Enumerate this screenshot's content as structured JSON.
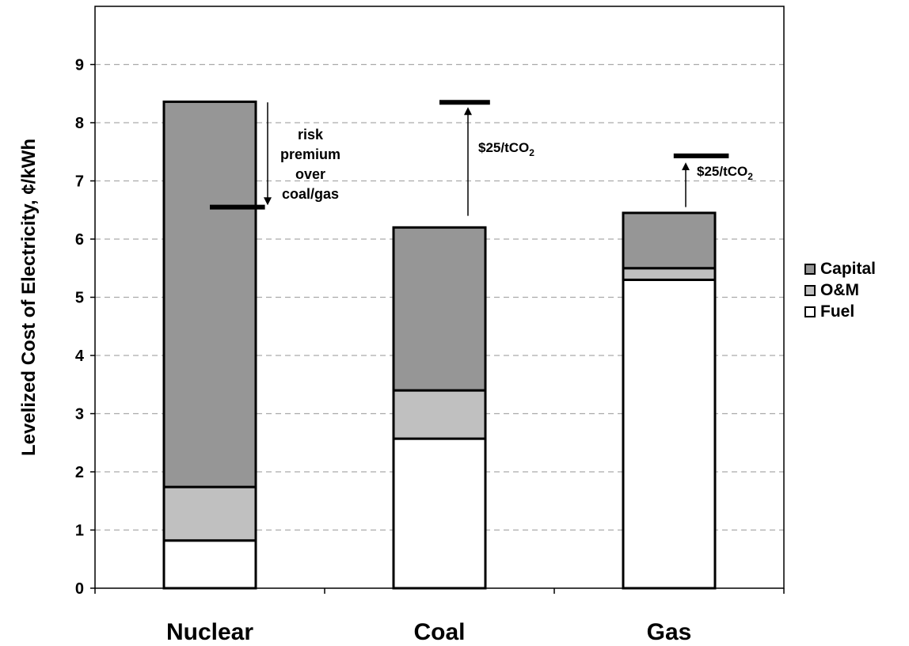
{
  "chart_data": {
    "type": "bar",
    "stacked": true,
    "title": "",
    "xlabel": "",
    "ylabel": "Levelized Cost of Electricity, ¢/kWh",
    "ylim": [
      0,
      10
    ],
    "yticks": [
      "0",
      "1",
      "2",
      "3",
      "4",
      "5",
      "6",
      "7",
      "8",
      "9"
    ],
    "grid": "horizontal dashed",
    "legend_position": "right",
    "categories": [
      "Nuclear",
      "Coal",
      "Gas"
    ],
    "series": [
      {
        "name": "Fuel",
        "values": [
          0.82,
          2.57,
          5.3
        ],
        "color": "#ffffff"
      },
      {
        "name": "O&M",
        "values": [
          0.92,
          0.83,
          0.2
        ],
        "color": "#c0c0c0"
      },
      {
        "name": "Capital",
        "values": [
          6.62,
          2.8,
          0.95
        ],
        "color": "#969696"
      }
    ],
    "markers": [
      {
        "category": "Nuclear",
        "value": 6.55
      },
      {
        "category": "Coal",
        "value": 8.35
      },
      {
        "category": "Gas",
        "value": 7.43
      }
    ],
    "annotations": {
      "nuclear_arrow": {
        "from": 8.35,
        "to": 6.65,
        "lines": [
          "risk",
          "premium",
          "over",
          "coal/gas"
        ]
      },
      "coal_arrow": {
        "from": 6.4,
        "to": 8.2,
        "text": "$25/tCO",
        "subscript": "2"
      },
      "gas_arrow": {
        "from": 6.55,
        "to": 7.25,
        "text": "$25/tCO",
        "subscript": "2"
      }
    },
    "colors": {
      "capital": "#969696",
      "om": "#c0c0c0",
      "fuel": "#ffffff",
      "grid": "#aaaaaa",
      "frame": "#000000"
    }
  }
}
